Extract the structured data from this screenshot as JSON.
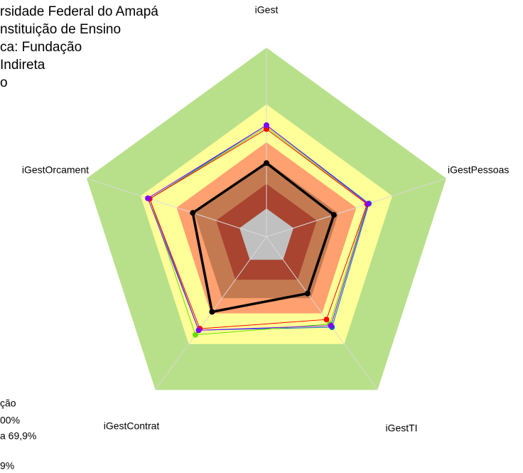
{
  "chart_data": {
    "type": "radar",
    "categories": [
      "iGest",
      "iGestPessoas",
      "iGestTI",
      "iGestContrat",
      "iGestOrcament"
    ],
    "rlim": [
      0,
      1
    ],
    "zones": [
      {
        "value": 1.0,
        "color": "#b8e08a"
      },
      {
        "value": 0.7,
        "color": "#ffff99"
      },
      {
        "value": 0.5,
        "color": "#ffa070"
      },
      {
        "value": 0.4,
        "color": "#c47a50"
      },
      {
        "value": 0.28,
        "color": "#a84430"
      },
      {
        "value": 0.15,
        "color": "#c0c0c0"
      }
    ],
    "series": [
      {
        "color": "#0070c0",
        "values": [
          0.59,
          0.57,
          0.59,
          0.61,
          0.65
        ]
      },
      {
        "color": "#66dd00",
        "values": [
          0.58,
          0.56,
          0.57,
          0.64,
          0.65
        ]
      },
      {
        "color": "#ff0000",
        "values": [
          0.57,
          0.56,
          0.54,
          0.6,
          0.65
        ]
      },
      {
        "color": "#8000ff",
        "values": [
          0.59,
          0.565,
          0.58,
          0.61,
          0.66
        ]
      },
      {
        "color": "#000000",
        "values": [
          0.39,
          0.375,
          0.37,
          0.49,
          0.41
        ]
      }
    ],
    "info_lines": [
      "rsidade Federal do Amapá",
      "nstituição de Ensino",
      "ca: Fundação",
      "Indireta",
      "o"
    ],
    "legend_lines": [
      "ção",
      "00%",
      "a 69,9%",
      "9%"
    ]
  }
}
